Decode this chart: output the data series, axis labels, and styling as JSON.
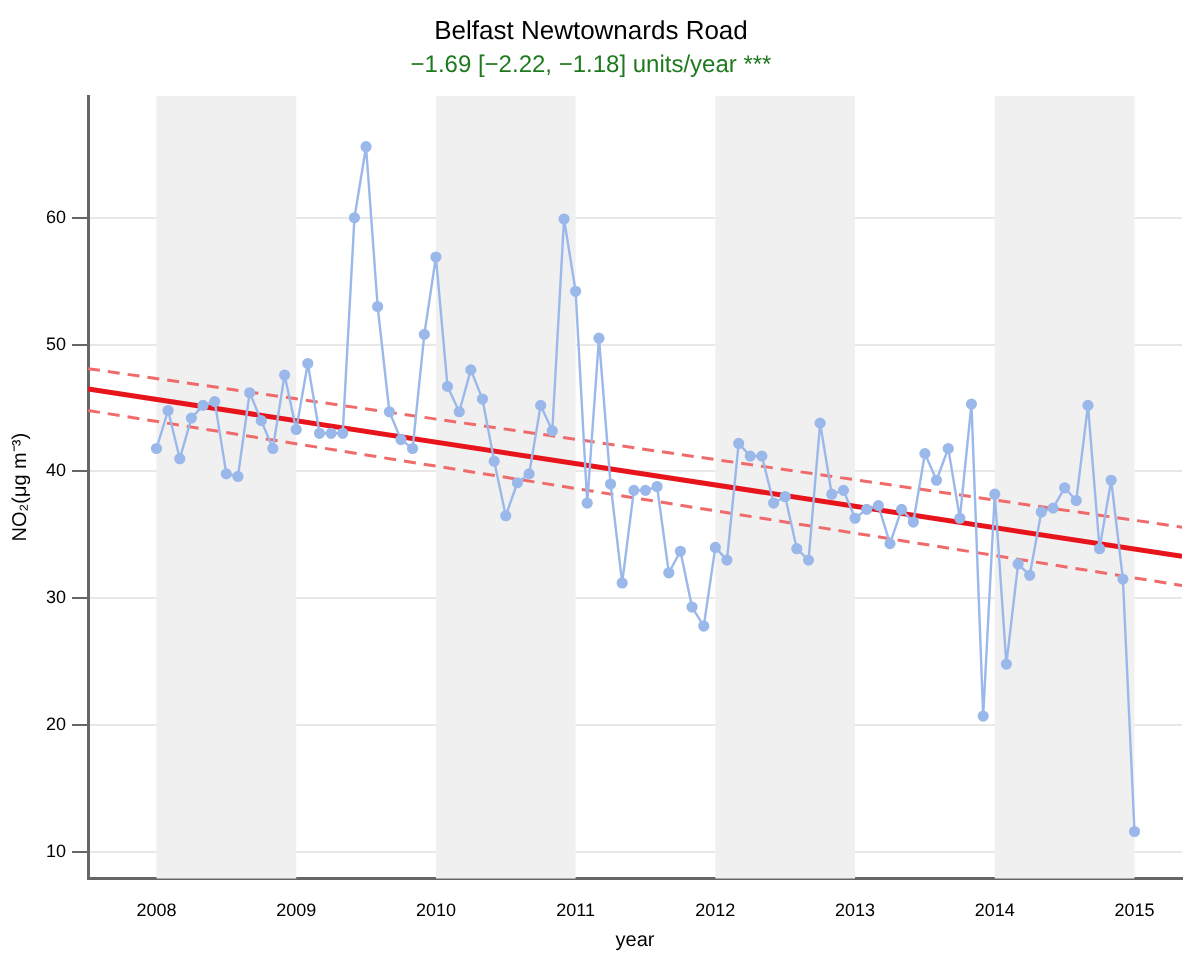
{
  "chart_data": {
    "type": "line",
    "title": "Belfast Newtownards Road",
    "subtitle": "−1.69 [−2.22, −1.18] units/year ***",
    "xlabel": "year",
    "ylabel": "NO₂(μg m⁻³)",
    "xlim": [
      2007.51,
      2015.34
    ],
    "xticks": [
      2008,
      2009,
      2010,
      2011,
      2012,
      2013,
      2014,
      2015
    ],
    "ylim": [
      7.9,
      69.6
    ],
    "yticks": [
      10,
      20,
      30,
      40,
      50,
      60
    ],
    "grid": "y",
    "legend": false,
    "bands": [
      {
        "axis": "x",
        "from": 2008,
        "to": 2009,
        "color": "#f0f0f0"
      },
      {
        "axis": "x",
        "from": 2010,
        "to": 2011,
        "color": "#f0f0f0"
      },
      {
        "axis": "x",
        "from": 2012,
        "to": 2013,
        "color": "#f0f0f0"
      },
      {
        "axis": "x",
        "from": 2014,
        "to": 2015,
        "color": "#f0f0f0"
      }
    ],
    "series": [
      {
        "color": "#9ab8ea",
        "marker": "circle",
        "line_style": "solid",
        "x": [
          2008,
          2008.083,
          2008.167,
          2008.25,
          2008.333,
          2008.417,
          2008.5,
          2008.583,
          2008.667,
          2008.75,
          2008.833,
          2008.917,
          2009,
          2009.083,
          2009.167,
          2009.25,
          2009.333,
          2009.417,
          2009.5,
          2009.583,
          2009.667,
          2009.75,
          2009.833,
          2009.917,
          2010,
          2010.083,
          2010.167,
          2010.25,
          2010.333,
          2010.417,
          2010.5,
          2010.583,
          2010.667,
          2010.75,
          2010.833,
          2010.917,
          2011,
          2011.083,
          2011.167,
          2011.25,
          2011.333,
          2011.417,
          2011.5,
          2011.583,
          2011.667,
          2011.75,
          2011.833,
          2011.917,
          2012,
          2012.083,
          2012.167,
          2012.25,
          2012.333,
          2012.417,
          2012.5,
          2012.583,
          2012.667,
          2012.75,
          2012.833,
          2012.917,
          2013,
          2013.083,
          2013.167,
          2013.25,
          2013.333,
          2013.417,
          2013.5,
          2013.583,
          2013.667,
          2013.75,
          2013.833,
          2013.917,
          2014,
          2014.083,
          2014.167,
          2014.25,
          2014.333,
          2014.417,
          2014.5,
          2014.583,
          2014.667,
          2014.75,
          2014.833,
          2014.917,
          2015
        ],
        "values": [
          41.8,
          44.8,
          41,
          44.2,
          45.2,
          45.5,
          39.8,
          39.6,
          46.2,
          44,
          41.8,
          47.6,
          43.3,
          48.5,
          43,
          43,
          43,
          60,
          65.6,
          53,
          44.7,
          42.5,
          41.8,
          50.8,
          56.9,
          46.7,
          44.7,
          48,
          45.7,
          40.8,
          36.5,
          39.1,
          39.8,
          45.2,
          43.2,
          59.9,
          54.2,
          37.5,
          50.5,
          39,
          31.2,
          38.5,
          38.5,
          38.8,
          32,
          33.7,
          29.3,
          27.8,
          34,
          33,
          42.2,
          41.2,
          41.2,
          37.5,
          38,
          33.9,
          33,
          43.8,
          38.2,
          38.5,
          36.3,
          37,
          37.3,
          34.3,
          37,
          36,
          41.4,
          39.3,
          41.8,
          36.3,
          45.3,
          20.7,
          38.2,
          24.8,
          32.7,
          31.8,
          36.8,
          37.1,
          38.7,
          37.7,
          45.2,
          33.9,
          39.3,
          31.5,
          11.6
        ]
      },
      {
        "type": "line",
        "color": "#e8141c",
        "marker": "none",
        "line_style": "solid",
        "x": [
          2007.51,
          2015.34
        ],
        "values": [
          46.5,
          33.3
        ]
      },
      {
        "type": "line",
        "color": "#f06a6a",
        "marker": "none",
        "line_style": "dashed",
        "x": [
          2007.51,
          2015.34
        ],
        "values": [
          48.1,
          35.6
        ]
      },
      {
        "type": "line",
        "color": "#f06a6a",
        "marker": "none",
        "line_style": "dashed",
        "x": [
          2007.51,
          2015.34
        ],
        "values": [
          44.8,
          31.0
        ]
      }
    ]
  }
}
